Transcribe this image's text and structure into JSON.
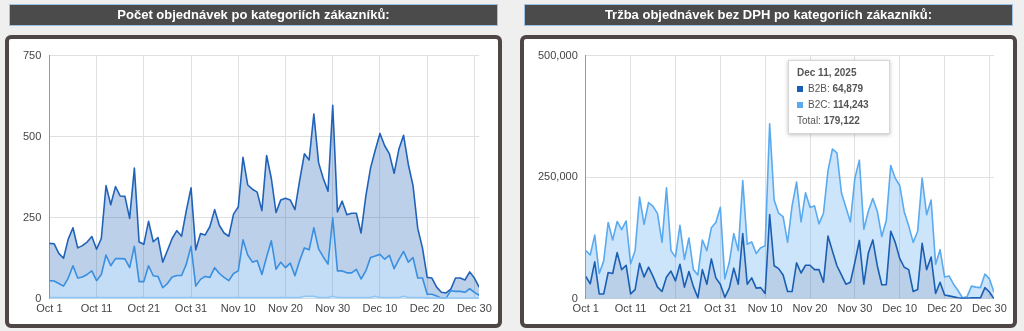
{
  "chart_data": [
    {
      "type": "area",
      "title": "Počet objednávek po kategoriích zákazníků:",
      "stacked": true,
      "grid": true,
      "x": [
        "2025-10-01",
        "2025-10-02",
        "2025-10-03",
        "2025-10-04",
        "2025-10-05",
        "2025-10-06",
        "2025-10-07",
        "2025-10-08",
        "2025-10-09",
        "2025-10-10",
        "2025-10-11",
        "2025-10-12",
        "2025-10-13",
        "2025-10-14",
        "2025-10-15",
        "2025-10-16",
        "2025-10-17",
        "2025-10-18",
        "2025-10-19",
        "2025-10-20",
        "2025-10-21",
        "2025-10-22",
        "2025-10-23",
        "2025-10-24",
        "2025-10-25",
        "2025-10-26",
        "2025-10-27",
        "2025-10-28",
        "2025-10-29",
        "2025-10-30",
        "2025-10-31",
        "2025-11-01",
        "2025-11-02",
        "2025-11-03",
        "2025-11-04",
        "2025-11-05",
        "2025-11-06",
        "2025-11-07",
        "2025-11-08",
        "2025-11-09",
        "2025-11-10",
        "2025-11-11",
        "2025-11-12",
        "2025-11-13",
        "2025-11-14",
        "2025-11-15",
        "2025-11-16",
        "2025-11-17",
        "2025-11-18",
        "2025-11-19",
        "2025-11-20",
        "2025-11-21",
        "2025-11-22",
        "2025-11-23",
        "2025-11-24",
        "2025-11-25",
        "2025-11-26",
        "2025-11-27",
        "2025-11-28",
        "2025-11-29",
        "2025-11-30",
        "2025-12-01",
        "2025-12-02",
        "2025-12-03",
        "2025-12-04",
        "2025-12-05",
        "2025-12-06",
        "2025-12-07",
        "2025-12-08",
        "2025-12-09",
        "2025-12-10",
        "2025-12-11",
        "2025-12-12",
        "2025-12-13",
        "2025-12-14",
        "2025-12-15",
        "2025-12-16",
        "2025-12-17",
        "2025-12-18",
        "2025-12-19",
        "2025-12-20",
        "2025-12-21",
        "2025-12-22",
        "2025-12-23",
        "2025-12-24",
        "2025-12-25",
        "2025-12-26",
        "2025-12-27",
        "2025-12-28",
        "2025-12-29",
        "2025-12-30",
        "2025-12-31"
      ],
      "xlim": [
        "2025-10-01",
        "2025-12-31"
      ],
      "xticks": [
        {
          "value": "2025-10-01",
          "label": "Oct 1"
        },
        {
          "value": "2025-10-11",
          "label": "Oct 11"
        },
        {
          "value": "2025-10-21",
          "label": "Oct 21"
        },
        {
          "value": "2025-10-31",
          "label": "Oct 31"
        },
        {
          "value": "2025-11-10",
          "label": "Nov 10"
        },
        {
          "value": "2025-11-20",
          "label": "Nov 20"
        },
        {
          "value": "2025-11-30",
          "label": "Nov 30"
        },
        {
          "value": "2025-12-10",
          "label": "Dec 10"
        },
        {
          "value": "2025-12-20",
          "label": "Dec 20"
        },
        {
          "value": "2025-12-30",
          "label": "Dec 30"
        }
      ],
      "ylim": [
        0,
        750
      ],
      "yticks": [
        0,
        250,
        500,
        750
      ],
      "series": [
        {
          "color": "#8cc6f4",
          "values": [
            4,
            4,
            4,
            4,
            4,
            4,
            4,
            4,
            4,
            4,
            4,
            4,
            4,
            4,
            4,
            4,
            4,
            4,
            4,
            4,
            4,
            4,
            4,
            4,
            4,
            4,
            4,
            4,
            4,
            4,
            4,
            4,
            4,
            4,
            4,
            4,
            4,
            4,
            4,
            4,
            4,
            4,
            4,
            4,
            4,
            4,
            4,
            4,
            4,
            4,
            4,
            4,
            4,
            4,
            8,
            8,
            8,
            4,
            4,
            4,
            8,
            4,
            4,
            4,
            4,
            4,
            4,
            4,
            4,
            8,
            4,
            4,
            4,
            4,
            4,
            8,
            4,
            4,
            4,
            4,
            2,
            2,
            2,
            2,
            2,
            2,
            2,
            2,
            2,
            2,
            2,
            2
          ]
        },
        {
          "color": "#3a8fe0",
          "values": [
            52,
            51,
            43,
            35,
            60,
            98,
            60,
            63,
            71,
            82,
            52,
            71,
            131,
            98,
            120,
            120,
            119,
            92,
            158,
            49,
            49,
            98,
            67,
            65,
            30,
            43,
            63,
            68,
            68,
            103,
            158,
            35,
            56,
            65,
            62,
            92,
            74,
            62,
            52,
            74,
            82,
            178,
            131,
            109,
            114,
            71,
            125,
            175,
            87,
            109,
            92,
            106,
            67,
            114,
            149,
            143,
            211,
            150,
            125,
            103,
            242,
            82,
            82,
            76,
            76,
            87,
            57,
            82,
            123,
            124,
            133,
            118,
            130,
            89,
            117,
            138,
            109,
            123,
            60,
            60,
            12,
            12,
            7,
            0,
            0,
            23,
            21,
            21,
            18,
            29,
            18,
            9
          ]
        },
        {
          "color": "#2163b8",
          "values": [
            115,
            115,
            93,
            86,
            120,
            117,
            93,
            97,
            100,
            106,
            97,
            111,
            214,
            188,
            222,
            193,
            193,
            152,
            241,
            122,
            115,
            137,
            105,
            120,
            79,
            102,
            119,
            138,
            121,
            165,
            180,
            112,
            141,
            128,
            157,
            179,
            148,
            137,
            137,
            183,
            197,
            254,
            216,
            225,
            211,
            197,
            313,
            192,
            175,
            192,
            214,
            195,
            204,
            247,
            290,
            277,
            351,
            266,
            242,
            225,
            347,
            182,
            215,
            179,
            184,
            173,
            142,
            230,
            276,
            326,
            373,
            350,
            313,
            294,
            340,
            358,
            302,
            222,
            153,
            93,
            52,
            50,
            27,
            18,
            16,
            5,
            41,
            41,
            38,
            52,
            44,
            25
          ]
        }
      ]
    },
    {
      "type": "area",
      "title": "Tržba objednávek bez DPH po kategoriích zákazníků:",
      "stacked": true,
      "grid": true,
      "legend": "top",
      "x": [
        "2025-10-01",
        "2025-10-02",
        "2025-10-03",
        "2025-10-04",
        "2025-10-05",
        "2025-10-06",
        "2025-10-07",
        "2025-10-08",
        "2025-10-09",
        "2025-10-10",
        "2025-10-11",
        "2025-10-12",
        "2025-10-13",
        "2025-10-14",
        "2025-10-15",
        "2025-10-16",
        "2025-10-17",
        "2025-10-18",
        "2025-10-19",
        "2025-10-20",
        "2025-10-21",
        "2025-10-22",
        "2025-10-23",
        "2025-10-24",
        "2025-10-25",
        "2025-10-26",
        "2025-10-27",
        "2025-10-28",
        "2025-10-29",
        "2025-10-30",
        "2025-10-31",
        "2025-11-01",
        "2025-11-02",
        "2025-11-03",
        "2025-11-04",
        "2025-11-05",
        "2025-11-06",
        "2025-11-07",
        "2025-11-08",
        "2025-11-09",
        "2025-11-10",
        "2025-11-11",
        "2025-11-12",
        "2025-11-13",
        "2025-11-14",
        "2025-11-15",
        "2025-11-16",
        "2025-11-17",
        "2025-11-18",
        "2025-11-19",
        "2025-11-20",
        "2025-11-21",
        "2025-11-22",
        "2025-11-23",
        "2025-11-24",
        "2025-11-25",
        "2025-11-26",
        "2025-11-27",
        "2025-11-28",
        "2025-11-29",
        "2025-11-30",
        "2025-12-01",
        "2025-12-02",
        "2025-12-03",
        "2025-12-04",
        "2025-12-05",
        "2025-12-06",
        "2025-12-07",
        "2025-12-08",
        "2025-12-09",
        "2025-12-10",
        "2025-12-11",
        "2025-12-12",
        "2025-12-13",
        "2025-12-14",
        "2025-12-15",
        "2025-12-16",
        "2025-12-17",
        "2025-12-18",
        "2025-12-19",
        "2025-12-20",
        "2025-12-21",
        "2025-12-22",
        "2025-12-23",
        "2025-12-24",
        "2025-12-25",
        "2025-12-26",
        "2025-12-27",
        "2025-12-28",
        "2025-12-29",
        "2025-12-30",
        "2025-12-31"
      ],
      "xlim": [
        "2025-10-01",
        "2025-12-31"
      ],
      "xticks": [
        {
          "value": "2025-10-01",
          "label": "Oct 1"
        },
        {
          "value": "2025-10-11",
          "label": "Oct 11"
        },
        {
          "value": "2025-10-21",
          "label": "Oct 21"
        },
        {
          "value": "2025-10-31",
          "label": "Oct 31"
        },
        {
          "value": "2025-11-10",
          "label": "Nov 10"
        },
        {
          "value": "2025-11-20",
          "label": "Nov 20"
        },
        {
          "value": "2025-11-30",
          "label": "Nov 30"
        },
        {
          "value": "2025-12-10",
          "label": "Dec 10"
        },
        {
          "value": "2025-12-20",
          "label": "Dec 20"
        },
        {
          "value": "2025-12-30",
          "label": "Dec 30"
        }
      ],
      "ylim": [
        0,
        500000
      ],
      "yticks": [
        0,
        {
          "value": 250000,
          "label": "250,000"
        },
        {
          "value": 500000,
          "label": "500,000"
        }
      ],
      "series": [
        {
          "name": "B2B",
          "color": "#1a5fb4",
          "values": [
            46000,
            31000,
            76000,
            10000,
            10000,
            54000,
            52000,
            95000,
            60000,
            69000,
            10000,
            19000,
            73000,
            45000,
            65000,
            46000,
            24000,
            15000,
            45000,
            57000,
            37000,
            71000,
            24000,
            56000,
            25000,
            2000,
            60000,
            30000,
            82000,
            43000,
            30000,
            3000,
            22000,
            63000,
            30000,
            134000,
            30000,
            43000,
            22000,
            23000,
            11000,
            173000,
            68000,
            62000,
            49000,
            15000,
            15000,
            74000,
            53000,
            69000,
            69000,
            60000,
            60000,
            34000,
            129000,
            98000,
            68000,
            49000,
            30000,
            34000,
            75000,
            120000,
            30000,
            94000,
            121000,
            68000,
            29000,
            29000,
            139000,
            116000,
            83000,
            64879,
            60000,
            15000,
            19000,
            114000,
            60000,
            86000,
            11000,
            34000,
            8000,
            6000,
            4000,
            2000,
            1000,
            1000,
            2000,
            2000,
            2000,
            23000,
            14000,
            0
          ]
        },
        {
          "name": "B2C",
          "color": "#5aaaf0",
          "values": [
            53000,
            59000,
            55000,
            42000,
            68000,
            103000,
            69000,
            64000,
            82000,
            91000,
            62000,
            80000,
            136000,
            108000,
            133000,
            144000,
            151000,
            101000,
            183000,
            42000,
            49000,
            80000,
            57000,
            69000,
            35000,
            47000,
            61000,
            69000,
            64000,
            114000,
            158000,
            38000,
            53000,
            71000,
            69000,
            109000,
            82000,
            74000,
            71000,
            82000,
            98000,
            187000,
            135000,
            114000,
            120000,
            101000,
            176000,
            166000,
            105000,
            149000,
            119000,
            131000,
            94000,
            142000,
            134000,
            210000,
            232000,
            169000,
            158000,
            124000,
            173000,
            165000,
            113000,
            86000,
            85000,
            112000,
            99000,
            132000,
            135000,
            132000,
            150000,
            114243,
            90000,
            101000,
            120000,
            134000,
            113000,
            117000,
            60000,
            67000,
            37000,
            41000,
            26000,
            15000,
            1000,
            3000,
            24000,
            22000,
            21000,
            28000,
            27000,
            14000
          ]
        }
      ],
      "annotations": [
        "Dec 11, 2025",
        ": 64,879",
        ": 114,243",
        "Total: 179,122"
      ]
    }
  ]
}
